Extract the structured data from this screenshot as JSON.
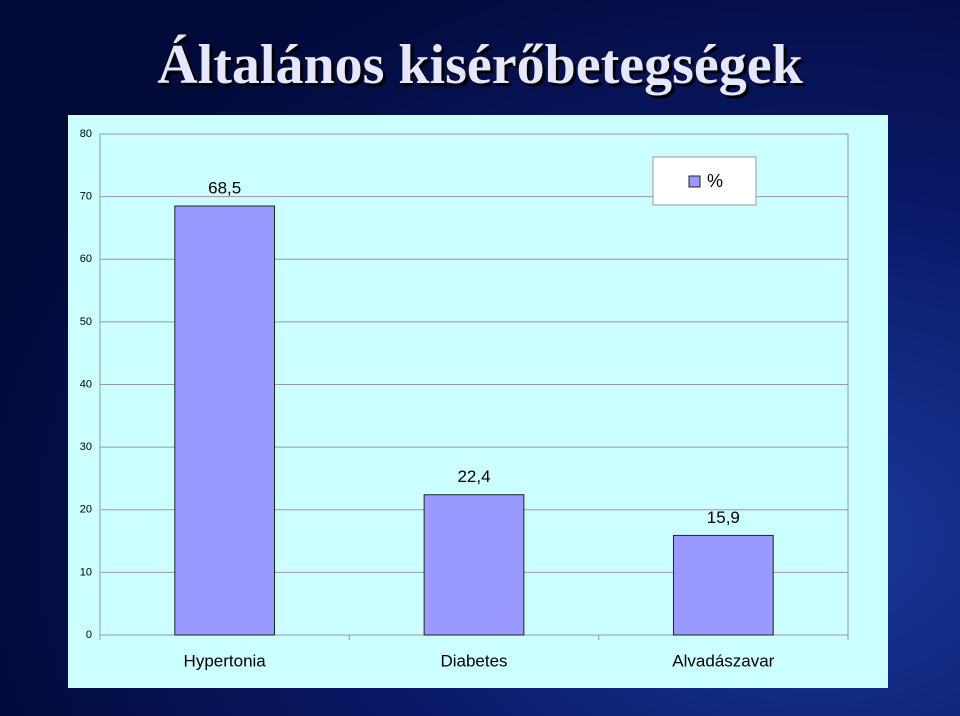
{
  "chart_data": {
    "type": "bar",
    "title": "Általános kisérőbetegségek",
    "categories": [
      "Hypertonia",
      "Diabetes",
      "Alvadászavar"
    ],
    "series": [
      {
        "name": "%",
        "color": "#9999ff",
        "values": [
          68.5,
          22.4,
          15.9
        ],
        "value_labels": [
          "68,5",
          "22,4",
          "15,9"
        ]
      }
    ],
    "ylim": [
      0,
      80
    ],
    "yticks": [
      0,
      10,
      20,
      30,
      40,
      50,
      60,
      70,
      80
    ],
    "grid": true,
    "legend": "upper right"
  }
}
